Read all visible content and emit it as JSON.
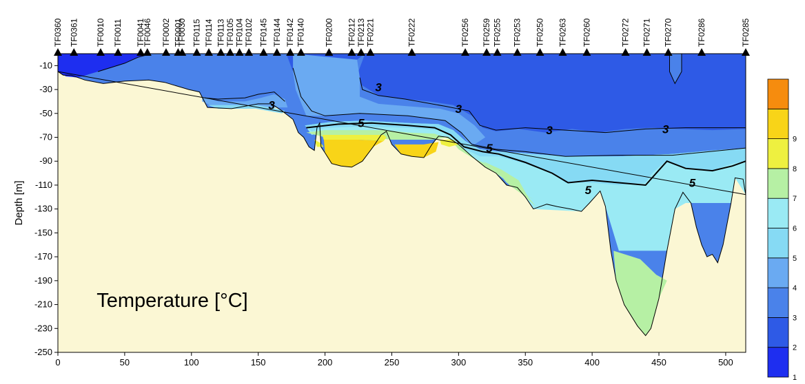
{
  "chart_data": {
    "type": "heatmap",
    "title": "Temperature [°C]",
    "xlabel": "",
    "ylabel": "Depth [m]",
    "xlim": [
      0,
      515
    ],
    "ylim": [
      -250,
      0
    ],
    "x_ticks": [
      0,
      50,
      100,
      150,
      200,
      250,
      300,
      350,
      400,
      450,
      500
    ],
    "y_ticks": [
      -10,
      -30,
      -50,
      -70,
      -90,
      -110,
      -130,
      -150,
      -170,
      -190,
      -210,
      -230,
      -250
    ],
    "stations": [
      {
        "name": "TF0360",
        "x": 0
      },
      {
        "name": "TF0361",
        "x": 12
      },
      {
        "name": "TF0010",
        "x": 32
      },
      {
        "name": "TF0011",
        "x": 45
      },
      {
        "name": "TF0041",
        "x": 62
      },
      {
        "name": "TF0046",
        "x": 67
      },
      {
        "name": "TF0002",
        "x": 81
      },
      {
        "name": "TF0001",
        "x": 90
      },
      {
        "name": "TF0030",
        "x": 93
      },
      {
        "name": "TF0115",
        "x": 104
      },
      {
        "name": "TF0114",
        "x": 113
      },
      {
        "name": "TF0113",
        "x": 122
      },
      {
        "name": "TF0105",
        "x": 129
      },
      {
        "name": "TF0104",
        "x": 136
      },
      {
        "name": "TF0102",
        "x": 143
      },
      {
        "name": "TF0145",
        "x": 154
      },
      {
        "name": "TF0144",
        "x": 164
      },
      {
        "name": "TF0142",
        "x": 174
      },
      {
        "name": "TF0140",
        "x": 182
      },
      {
        "name": "TF0200",
        "x": 203
      },
      {
        "name": "TF0212",
        "x": 220
      },
      {
        "name": "TF0213",
        "x": 227
      },
      {
        "name": "TF0221",
        "x": 234
      },
      {
        "name": "TF0222",
        "x": 265
      },
      {
        "name": "TF0256",
        "x": 305
      },
      {
        "name": "TF0259",
        "x": 321
      },
      {
        "name": "TF0255",
        "x": 329
      },
      {
        "name": "TF0253",
        "x": 344
      },
      {
        "name": "TF0250",
        "x": 361
      },
      {
        "name": "TF0263",
        "x": 378
      },
      {
        "name": "TF0260",
        "x": 396
      },
      {
        "name": "TF0272",
        "x": 425
      },
      {
        "name": "TF0271",
        "x": 441
      },
      {
        "name": "TF0270",
        "x": 457
      },
      {
        "name": "TF0286",
        "x": 482
      },
      {
        "name": "TF0285",
        "x": 515
      }
    ],
    "colorbar": {
      "levels": [
        1,
        2,
        3,
        4,
        5,
        6,
        7,
        8,
        9
      ],
      "colors": [
        "#1e2ef0",
        "#2e5ae6",
        "#4a82ea",
        "#6aaaf2",
        "#86daf4",
        "#9aeaf4",
        "#b6f0a4",
        "#eef040",
        "#f8d418",
        "#f68c0e"
      ]
    },
    "contour_labels": [
      {
        "text": "3",
        "x": 160,
        "y": -43
      },
      {
        "text": "3",
        "x": 240,
        "y": -28
      },
      {
        "text": "3",
        "x": 300,
        "y": -46
      },
      {
        "text": "5",
        "x": 227,
        "y": -58
      },
      {
        "text": "3",
        "x": 368,
        "y": -64
      },
      {
        "text": "3",
        "x": 455,
        "y": -63
      },
      {
        "text": "5",
        "x": 323,
        "y": -79
      },
      {
        "text": "5",
        "x": 397,
        "y": -114
      },
      {
        "text": "5",
        "x": 475,
        "y": -108
      }
    ]
  }
}
